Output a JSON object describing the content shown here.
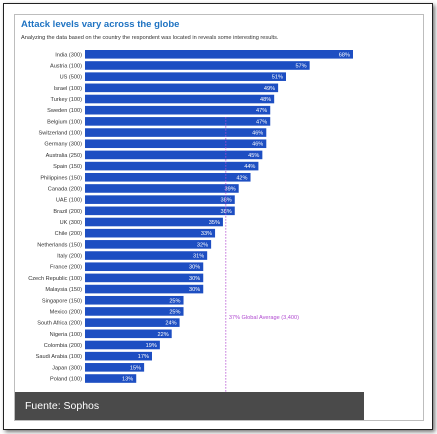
{
  "title": "Attack levels vary across the globe",
  "subtitle": "Analyzing the data based on the country the respondent was located in reveals some interesting results.",
  "caption": "Fuente: Sophos",
  "colors": {
    "bar": "#1d4ec2",
    "average_line": "#b04ad0",
    "title": "#1f73c2"
  },
  "chart_data": {
    "type": "bar",
    "orientation": "horizontal",
    "categories": [
      "India (300)",
      "Austria (100)",
      "US (500)",
      "Israel (100)",
      "Turkey (100)",
      "Sweden (100)",
      "Belgium (100)",
      "Switzerland (100)",
      "Germany (300)",
      "Australia (250)",
      "Spain (150)",
      "Philippines (150)",
      "Canada (200)",
      "UAE (100)",
      "Brazil (200)",
      "UK (300)",
      "Chile (200)",
      "Netherlands (150)",
      "Italy (200)",
      "France (200)",
      "Czech Republic (100)",
      "Malaysia (150)",
      "Singapore (150)",
      "Mexico (200)",
      "South Africa (200)",
      "Nigeria (100)",
      "Colombia (200)",
      "Saudi Arabia (100)",
      "Japan (300)",
      "Poland (100)"
    ],
    "values": [
      68,
      57,
      51,
      49,
      48,
      47,
      47,
      46,
      46,
      45,
      44,
      42,
      39,
      38,
      38,
      35,
      33,
      32,
      31,
      30,
      30,
      30,
      25,
      25,
      24,
      22,
      19,
      17,
      15,
      13
    ],
    "data_labels": [
      "68%",
      "57%",
      "51%",
      "49%",
      "48%",
      "47%",
      "47%",
      "46%",
      "46%",
      "45%",
      "44%",
      "42%",
      "39%",
      "38%",
      "38%",
      "35%",
      "33%",
      "32%",
      "31%",
      "30%",
      "30%",
      "30%",
      "25%",
      "25%",
      "24%",
      "22%",
      "19%",
      "17%",
      "15%",
      "13%"
    ],
    "reference_line": {
      "value": 37,
      "label": "37% Global Average (3,400)"
    },
    "xlim": [
      0,
      68
    ],
    "grid": false,
    "legend": "none"
  }
}
